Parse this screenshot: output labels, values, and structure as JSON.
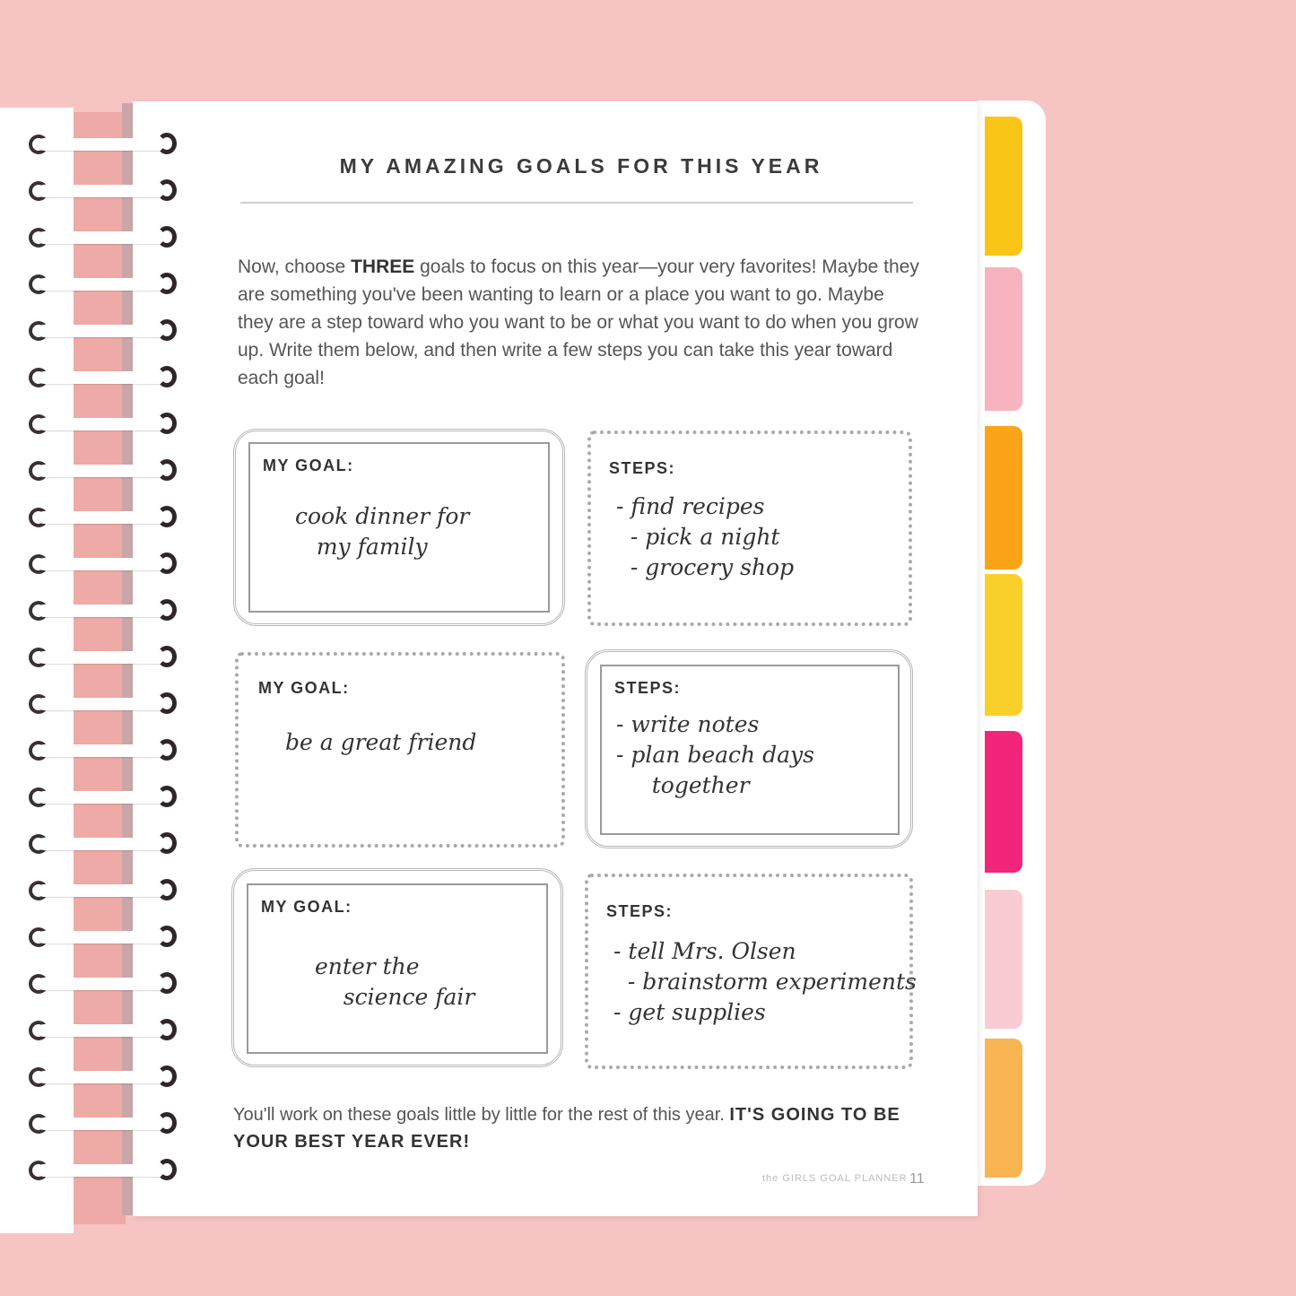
{
  "page": {
    "title": "MY AMAZING GOALS FOR THIS YEAR",
    "intro_before": "Now, choose ",
    "intro_bold": "THREE",
    "intro_after": " goals to focus on this year—your very favorites! Maybe they are something you've been wanting to learn or a place you want to go. Maybe they are a step toward who you want to be or what you want to do when you grow up. Write them below, and then write a few steps you can take this year toward each goal!",
    "goals": [
      {
        "goal_label": "MY GOAL:",
        "goal_text": "cook dinner for\n   my family",
        "steps_label": "STEPS:",
        "steps_text": "- find recipes\n  - pick a night\n  - grocery shop"
      },
      {
        "goal_label": "MY GOAL:",
        "goal_text": "be a great friend",
        "steps_label": "STEPS:",
        "steps_text": "- write notes\n- plan beach days\n     together"
      },
      {
        "goal_label": "MY GOAL:",
        "goal_text": "enter the\n    science fair",
        "steps_label": "STEPS:",
        "steps_text": "- tell Mrs. Olsen\n  - brainstorm experiments\n- get supplies"
      }
    ],
    "closing_text": "You'll work on these goals little by little for the rest of this year. ",
    "closing_bold": "IT'S GOING TO BE YOUR BEST YEAR EVER!",
    "footer": "the GIRLS GOAL PLANNER",
    "page_number": "11"
  },
  "colors": {
    "background": "#f6c4c2",
    "tabs": [
      "#f9c617",
      "#f7b3c0",
      "#fba41a",
      "#f9cf2a",
      "#f2257a",
      "#f9ccd4",
      "#f8b552"
    ]
  }
}
